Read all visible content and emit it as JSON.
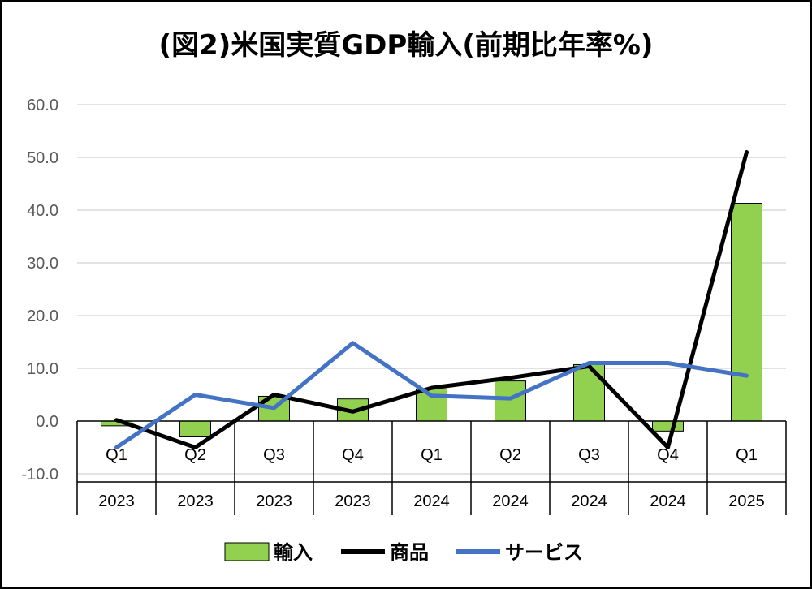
{
  "chart_data": {
    "type": "bar",
    "title": "(図2)米国実質GDP輸入(前期比年率%)",
    "quarters": [
      "Q1",
      "Q2",
      "Q3",
      "Q4",
      "Q1",
      "Q2",
      "Q3",
      "Q4",
      "Q1"
    ],
    "years": [
      "2023",
      "2023",
      "2023",
      "2023",
      "2024",
      "2024",
      "2024",
      "2024",
      "2025"
    ],
    "ylim": [
      -10,
      60
    ],
    "yticks": [
      "-10.0",
      "0.0",
      "10.0",
      "20.0",
      "30.0",
      "40.0",
      "50.0",
      "60.0"
    ],
    "grid": true,
    "legend_position": "bottom",
    "series": [
      {
        "name": "輸入",
        "kind": "bar",
        "color": "#92D050",
        "values": [
          -0.9,
          -3.0,
          4.7,
          4.2,
          6.1,
          7.6,
          10.7,
          -1.9,
          41.3
        ]
      },
      {
        "name": "商品",
        "kind": "line",
        "color": "#000000",
        "values": [
          0.2,
          -5.0,
          5.0,
          1.8,
          6.3,
          8.2,
          10.4,
          -5.0,
          51.0
        ]
      },
      {
        "name": "サービス",
        "kind": "line",
        "color": "#4472C4",
        "values": [
          -5.0,
          5.0,
          2.5,
          14.8,
          4.8,
          4.3,
          11.0,
          11.0,
          8.6
        ]
      }
    ]
  }
}
